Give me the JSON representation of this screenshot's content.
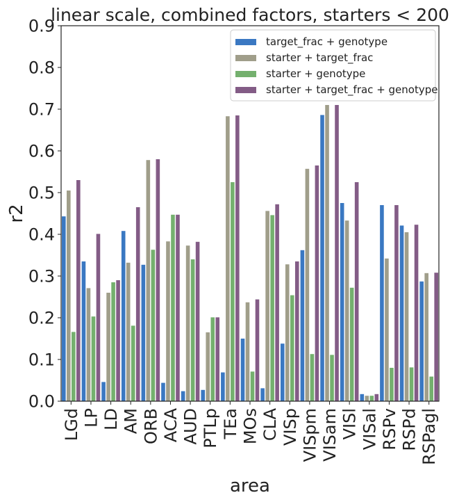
{
  "chart_data": {
    "type": "bar",
    "title": "linear scale, combined factors, starters < 200",
    "xlabel": "area",
    "ylabel": "r2",
    "ylim": [
      0,
      0.9
    ],
    "yticks": [
      "0.0",
      "0.1",
      "0.2",
      "0.3",
      "0.4",
      "0.5",
      "0.6",
      "0.7",
      "0.8",
      "0.9"
    ],
    "grid": false,
    "legend_position": "top-right",
    "categories": [
      "LGd",
      "LP",
      "LD",
      "AM",
      "ORB",
      "ACA",
      "AUD",
      "PTLp",
      "TEa",
      "MOs",
      "CLA",
      "VISp",
      "VISpm",
      "VISam",
      "VISl",
      "VISal",
      "RSPv",
      "RSPd",
      "RSPagl"
    ],
    "series": [
      {
        "name": "target_frac + genotype",
        "color": "#3a78c2",
        "values": [
          0.443,
          0.335,
          0.046,
          0.408,
          0.327,
          0.044,
          0.024,
          0.027,
          0.069,
          0.15,
          0.031,
          0.138,
          0.362,
          0.686,
          0.475,
          0.017,
          0.47,
          0.421,
          0.287
        ]
      },
      {
        "name": "starter + target_frac",
        "color": "#a09e8a",
        "values": [
          0.505,
          0.271,
          0.26,
          0.332,
          0.578,
          0.383,
          0.373,
          0.165,
          0.683,
          0.237,
          0.456,
          0.328,
          0.557,
          0.71,
          0.433,
          0.013,
          0.342,
          0.405,
          0.307
        ]
      },
      {
        "name": "starter + genotype",
        "color": "#74b06e",
        "values": [
          0.166,
          0.203,
          0.285,
          0.181,
          0.363,
          0.447,
          0.34,
          0.201,
          0.525,
          0.071,
          0.446,
          0.254,
          0.113,
          0.111,
          0.272,
          0.013,
          0.08,
          0.081,
          0.059
        ]
      },
      {
        "name": "starter + target_frac + genotype",
        "color": "#835c86",
        "values": [
          0.53,
          0.401,
          0.29,
          0.465,
          0.58,
          0.447,
          0.382,
          0.201,
          0.685,
          0.244,
          0.472,
          0.335,
          0.565,
          0.71,
          0.525,
          0.017,
          0.47,
          0.423,
          0.308
        ]
      }
    ]
  }
}
